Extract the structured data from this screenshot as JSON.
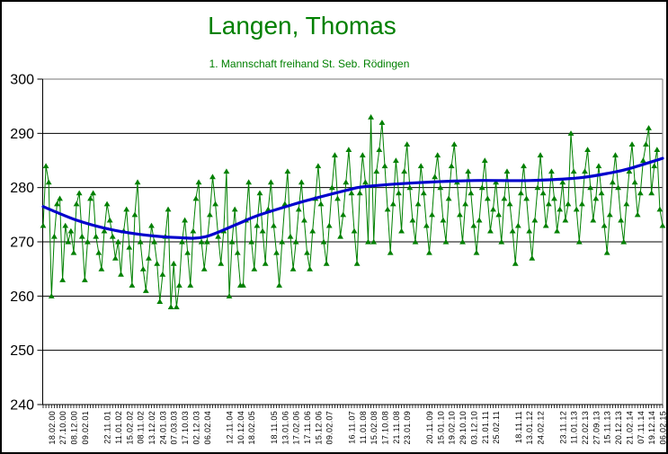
{
  "chart_data": {
    "type": "line",
    "title": "Langen, Thomas",
    "subtitle": "1. Mannschaft freihand St. Seb. Rödingen",
    "ylim": [
      240,
      300
    ],
    "ytick_step": 10,
    "y_tick_labels": [
      "300",
      "290",
      "280",
      "270",
      "260",
      "250",
      "240"
    ],
    "grid": true,
    "legend_position": "none",
    "label_every_n_points": 4,
    "first_label_point_index": 3,
    "x_labels": [
      "18.02.00",
      "27.10.00",
      "08.12.00",
      "09.02.01",
      "",
      "22.11.01",
      "11.01.02",
      "15.02.02",
      "08.11.02",
      "13.12.02",
      "24.01.03",
      "07.03.03",
      "17.10.03",
      "02.12.03",
      "06.02.04",
      "",
      "12.11.04",
      "10.12.04",
      "18.02.05",
      "",
      "18.11.05",
      "13.01.06",
      "17.02.06",
      "17.11.06",
      "15.12.06",
      "09.02.07",
      "",
      "16.11.07",
      "11.01.08",
      "15.02.08",
      "17.10.08",
      "21.11.08",
      "23.01.09",
      "",
      "20.11.09",
      "15.01.10",
      "19.02.10",
      "29.10.10",
      "03.12.10",
      "21.01.11",
      "25.02.11",
      "",
      "18.11.11",
      "13.01.12",
      "24.02.12",
      "",
      "23.11.12",
      "11.01.13",
      "22.02.13",
      "27.09.13",
      "15.11.13",
      "20.12.13",
      "21.02.14",
      "07.11.14",
      "19.12.14",
      "06.02.15"
    ],
    "points": {
      "marker": "triangle-up",
      "values": [
        273,
        284,
        281,
        260,
        271,
        277,
        278,
        263,
        273,
        270,
        272,
        268,
        277,
        279,
        271,
        263,
        270,
        278,
        279,
        271,
        268,
        265,
        272,
        277,
        274,
        271,
        267,
        270,
        264,
        272,
        276,
        269,
        262,
        275,
        281,
        270,
        265,
        261,
        267,
        273,
        270,
        266,
        259,
        264,
        271,
        276,
        258,
        266,
        258,
        262,
        270,
        274,
        268,
        262,
        272,
        278,
        281,
        270,
        265,
        270,
        275,
        282,
        277,
        271,
        266,
        272,
        283,
        260,
        270,
        276,
        268,
        262,
        262,
        274,
        281,
        270,
        265,
        273,
        279,
        272,
        266,
        276,
        281,
        273,
        268,
        262,
        270,
        277,
        283,
        271,
        265,
        270,
        276,
        281,
        274,
        268,
        265,
        272,
        278,
        284,
        277,
        270,
        266,
        273,
        280,
        286,
        278,
        271,
        275,
        281,
        287,
        279,
        272,
        266,
        279,
        286,
        281,
        270,
        293,
        270,
        283,
        287,
        292,
        284,
        276,
        268,
        277,
        285,
        279,
        272,
        283,
        288,
        280,
        274,
        270,
        277,
        284,
        279,
        273,
        268,
        275,
        282,
        286,
        280,
        274,
        270,
        278,
        284,
        288,
        281,
        275,
        270,
        277,
        283,
        279,
        273,
        268,
        274,
        280,
        285,
        278,
        272,
        276,
        281,
        275,
        270,
        278,
        283,
        277,
        272,
        266,
        273,
        279,
        284,
        278,
        272,
        267,
        274,
        280,
        286,
        279,
        273,
        277,
        283,
        278,
        272,
        276,
        281,
        274,
        277,
        290,
        283,
        276,
        270,
        277,
        283,
        287,
        280,
        274,
        278,
        284,
        279,
        273,
        268,
        275,
        281,
        286,
        280,
        274,
        270,
        277,
        283,
        288,
        281,
        275,
        279,
        285,
        288,
        291,
        279,
        284,
        287,
        276,
        273
      ]
    },
    "trendline": {
      "style": "smooth",
      "points": [
        [
          0,
          276.5
        ],
        [
          12,
          274.0
        ],
        [
          24,
          272.3
        ],
        [
          36,
          271.3
        ],
        [
          48,
          270.8
        ],
        [
          58,
          270.9
        ],
        [
          70,
          273.3
        ],
        [
          77,
          274.8
        ],
        [
          90,
          276.9
        ],
        [
          97,
          277.9
        ],
        [
          110,
          279.6
        ],
        [
          116,
          280.2
        ],
        [
          135,
          280.9
        ],
        [
          155,
          281.3
        ],
        [
          175,
          281.3
        ],
        [
          193,
          281.8
        ],
        [
          205,
          282.8
        ],
        [
          211,
          283.5
        ],
        [
          223,
          285.4
        ]
      ]
    },
    "colors": {
      "series": "#008000",
      "trend": "#0000CC",
      "grid": "#000000",
      "plot_border": "#909090",
      "title": "#008000",
      "axis_text": "#000000",
      "background": "#FFFFFF"
    }
  }
}
